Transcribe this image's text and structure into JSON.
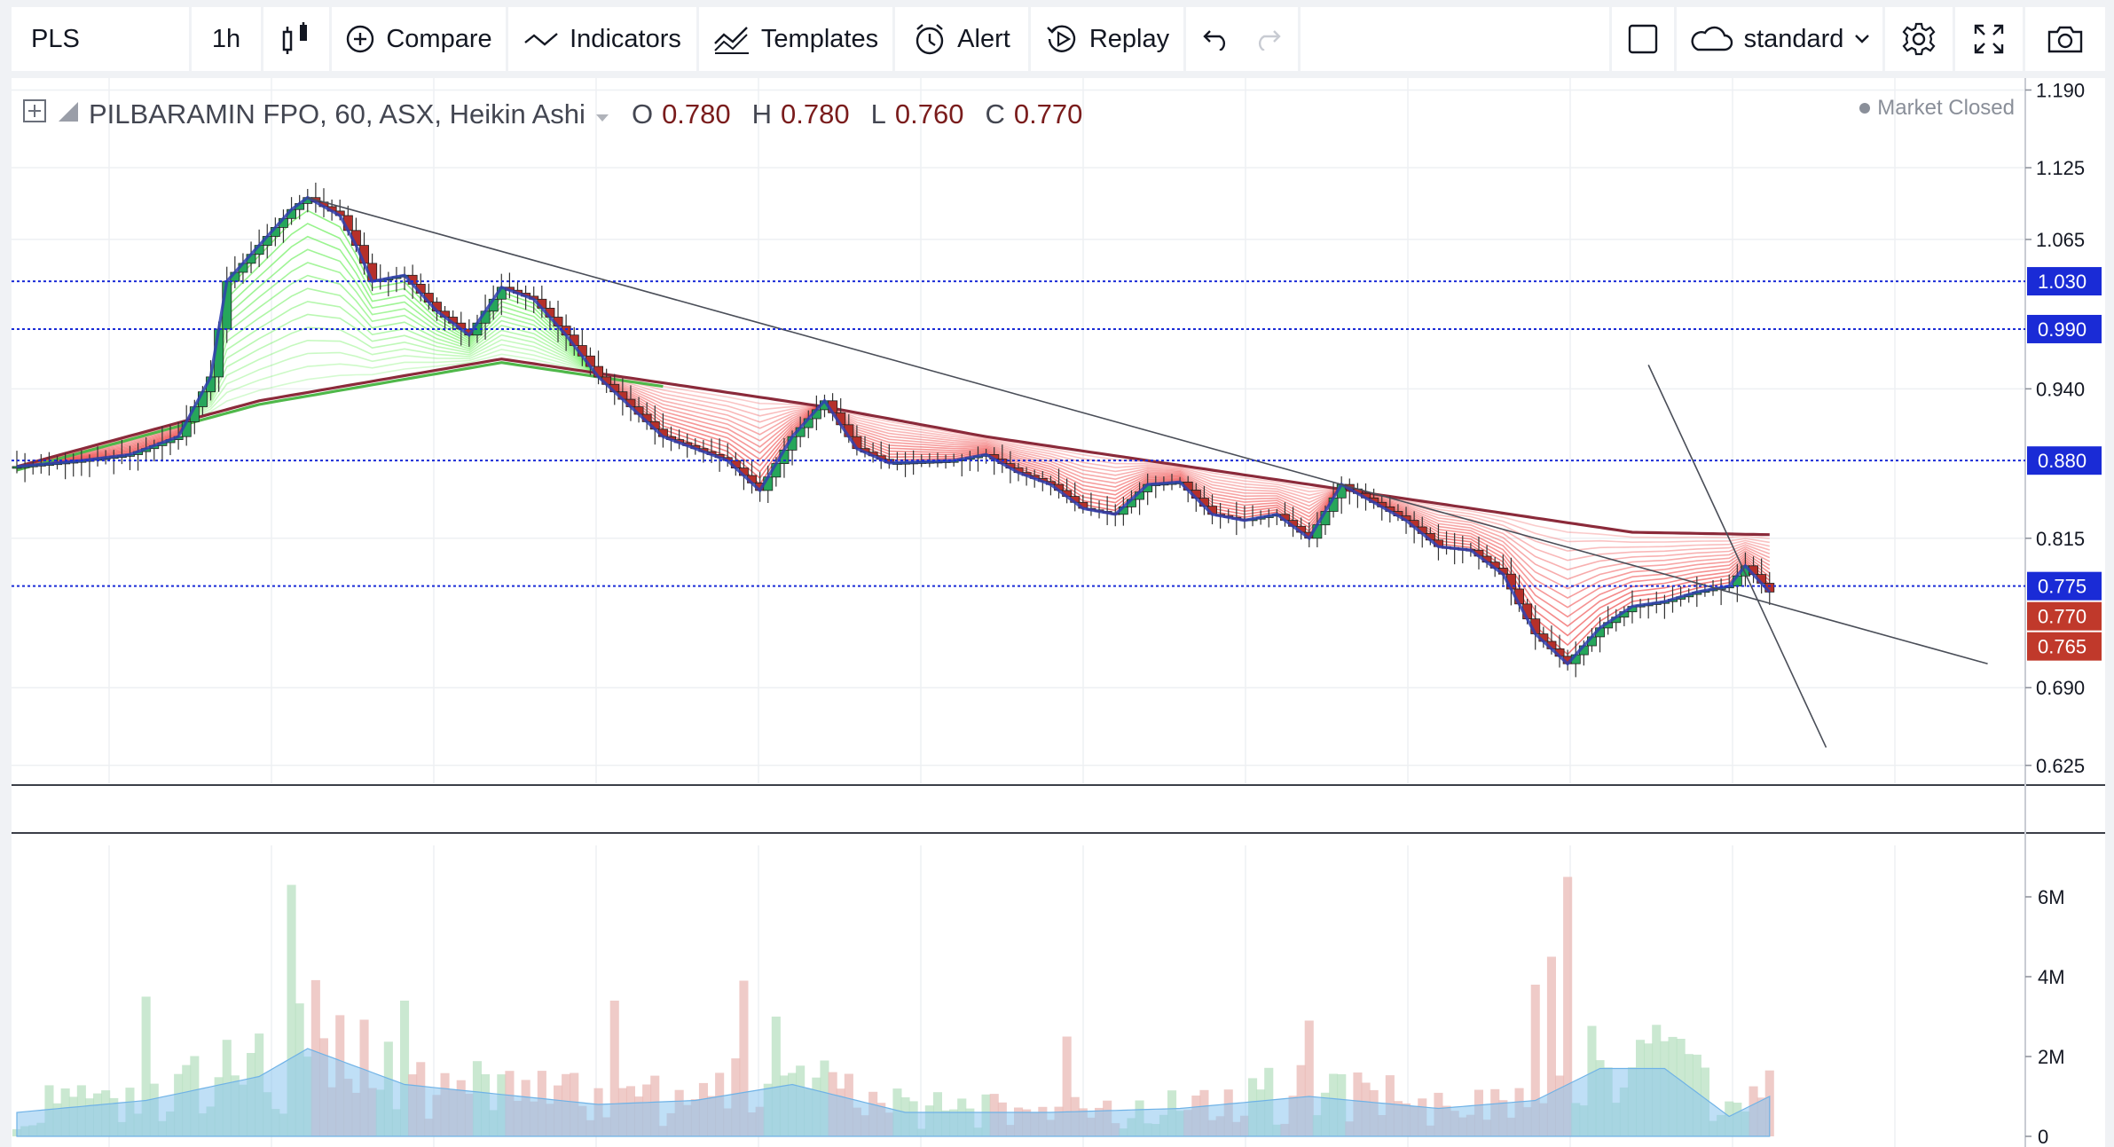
{
  "toolbar": {
    "symbol": "PLS",
    "interval": "1h",
    "compare": "Compare",
    "indicators": "Indicators",
    "templates": "Templates",
    "alert": "Alert",
    "replay": "Replay",
    "layout": "standard"
  },
  "legend": {
    "title": "PILBARAMIN FPO, 60, ASX, Heikin Ashi",
    "o_label": "O",
    "o_value": "0.780",
    "h_label": "H",
    "h_value": "0.780",
    "l_label": "L",
    "l_value": "0.760",
    "c_label": "C",
    "c_value": "0.770"
  },
  "status": "Market Closed",
  "colors": {
    "up": "#26a65b",
    "down": "#b5302a",
    "ribbon_green": "#66ee55",
    "ribbon_red": "#ee4444",
    "ma_long": "#8b2a3a",
    "ma_green": "#4fb84a",
    "ma_blue": "#3040b0",
    "hline": "#1a2bd6",
    "price_tag": "#1a2bd6",
    "last_tag": "#c0392b",
    "volume_area": "#8ac4ee"
  },
  "chart_data": {
    "type": "candlestick",
    "chart_style": "Heikin Ashi",
    "symbol": "PILBARAMIN FPO",
    "exchange": "ASX",
    "interval": "60",
    "price_axis": {
      "range": [
        0.61,
        1.2
      ],
      "ticks": [
        "1.190",
        "1.125",
        "1.065",
        "0.940",
        "0.815",
        "0.690",
        "0.625"
      ]
    },
    "horizontal_lines": [
      1.03,
      0.99,
      0.88,
      0.775
    ],
    "price_tags": [
      {
        "value": "1.030",
        "kind": "line"
      },
      {
        "value": "0.990",
        "kind": "line"
      },
      {
        "value": "0.880",
        "kind": "line"
      },
      {
        "value": "0.775",
        "kind": "line"
      },
      {
        "value": "0.770",
        "kind": "last"
      },
      {
        "value": "0.765",
        "kind": "last"
      }
    ],
    "price_path": [
      [
        0,
        0.875
      ],
      [
        4,
        0.88
      ],
      [
        7,
        0.885
      ],
      [
        10,
        0.9
      ],
      [
        12,
        0.95
      ],
      [
        13,
        1.03
      ],
      [
        15,
        1.06
      ],
      [
        17,
        1.09
      ],
      [
        18,
        1.1
      ],
      [
        20,
        1.085
      ],
      [
        21,
        1.06
      ],
      [
        22,
        1.03
      ],
      [
        24,
        1.035
      ],
      [
        26,
        1.005
      ],
      [
        28,
        0.985
      ],
      [
        30,
        1.025
      ],
      [
        32,
        1.015
      ],
      [
        34,
        0.985
      ],
      [
        36,
        0.95
      ],
      [
        38,
        0.925
      ],
      [
        40,
        0.9
      ],
      [
        42,
        0.89
      ],
      [
        44,
        0.88
      ],
      [
        46,
        0.855
      ],
      [
        48,
        0.9
      ],
      [
        50,
        0.93
      ],
      [
        52,
        0.89
      ],
      [
        54,
        0.878
      ],
      [
        58,
        0.88
      ],
      [
        60,
        0.885
      ],
      [
        62,
        0.87
      ],
      [
        64,
        0.86
      ],
      [
        66,
        0.84
      ],
      [
        68,
        0.835
      ],
      [
        70,
        0.86
      ],
      [
        72,
        0.862
      ],
      [
        74,
        0.835
      ],
      [
        76,
        0.83
      ],
      [
        78,
        0.835
      ],
      [
        80,
        0.815
      ],
      [
        82,
        0.86
      ],
      [
        84,
        0.845
      ],
      [
        86,
        0.83
      ],
      [
        88,
        0.808
      ],
      [
        90,
        0.805
      ],
      [
        92,
        0.785
      ],
      [
        94,
        0.735
      ],
      [
        96,
        0.71
      ],
      [
        98,
        0.74
      ],
      [
        100,
        0.758
      ],
      [
        102,
        0.762
      ],
      [
        104,
        0.77
      ],
      [
        106,
        0.775
      ],
      [
        107,
        0.792
      ],
      [
        108.5,
        0.77
      ]
    ],
    "ema_long": [
      [
        0,
        0.875
      ],
      [
        15,
        0.93
      ],
      [
        30,
        0.965
      ],
      [
        40,
        0.945
      ],
      [
        50,
        0.925
      ],
      [
        60,
        0.9
      ],
      [
        70,
        0.88
      ],
      [
        80,
        0.86
      ],
      [
        90,
        0.84
      ],
      [
        100,
        0.82
      ],
      [
        108.5,
        0.818
      ]
    ],
    "trendlines": [
      {
        "from": [
          18,
          1.1
        ],
        "to": [
          122,
          0.71
        ]
      },
      {
        "from": [
          101,
          0.96
        ],
        "to": [
          112,
          0.64
        ]
      }
    ],
    "volume_axis": {
      "range": [
        0,
        7000000
      ],
      "ticks": [
        "6M",
        "4M",
        "2M",
        "0"
      ]
    },
    "volume_spikes": [
      [
        17,
        6300000
      ],
      [
        45,
        3900000
      ],
      [
        37,
        3400000
      ],
      [
        47,
        3000000
      ],
      [
        96,
        6500000
      ],
      [
        95,
        4500000
      ],
      [
        94,
        3800000
      ],
      [
        80,
        2900000
      ],
      [
        65,
        2500000
      ],
      [
        24,
        3400000
      ],
      [
        8,
        3500000
      ]
    ],
    "volume_average": [
      [
        0,
        600000
      ],
      [
        8,
        900000
      ],
      [
        15,
        1500000
      ],
      [
        18,
        2200000
      ],
      [
        24,
        1300000
      ],
      [
        36,
        800000
      ],
      [
        42,
        900000
      ],
      [
        48,
        1300000
      ],
      [
        55,
        600000
      ],
      [
        64,
        600000
      ],
      [
        72,
        700000
      ],
      [
        80,
        1000000
      ],
      [
        88,
        700000
      ],
      [
        94,
        900000
      ],
      [
        98,
        1700000
      ],
      [
        102,
        1700000
      ],
      [
        106,
        500000
      ],
      [
        108.5,
        1000000
      ]
    ]
  }
}
